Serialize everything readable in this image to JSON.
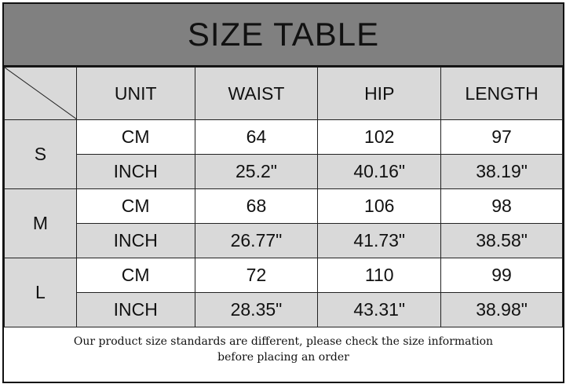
{
  "title": "SIZE TABLE",
  "headers": [
    "UNIT",
    "WAIST",
    "HIP",
    "LENGTH"
  ],
  "sizes": [
    {
      "size": "S",
      "rows": [
        {
          "unit": "CM",
          "waist": "64",
          "hip": "102",
          "length": "97"
        },
        {
          "unit": "INCH",
          "waist": "25.2\"",
          "hip": "40.16\"",
          "length": "38.19\""
        }
      ]
    },
    {
      "size": "M",
      "rows": [
        {
          "unit": "CM",
          "waist": "68",
          "hip": "106",
          "length": "98"
        },
        {
          "unit": "INCH",
          "waist": "26.77\"",
          "hip": "41.73\"",
          "length": "38.58\""
        }
      ]
    },
    {
      "size": "L",
      "rows": [
        {
          "unit": "CM",
          "waist": "72",
          "hip": "110",
          "length": "99"
        },
        {
          "unit": "INCH",
          "waist": "28.35\"",
          "hip": "43.31\"",
          "length": "38.98\""
        }
      ]
    }
  ],
  "note_line1": "Our product size standards are different, please check the size information",
  "note_line2": "before placing an order",
  "colors": {
    "title_bg": "#808080",
    "header_bg": "#d9d9d9",
    "inch_row_bg": "#d9d9d9",
    "cm_row_bg": "#ffffff"
  }
}
